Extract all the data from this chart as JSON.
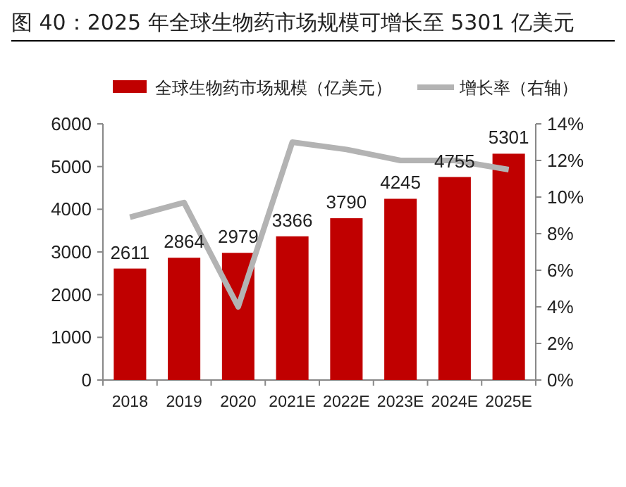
{
  "chart_data": {
    "type": "bar",
    "title": "图 40：2025 年全球生物药市场规模可增长至 5301 亿美元",
    "categories": [
      "2018",
      "2019",
      "2020",
      "2021E",
      "2022E",
      "2023E",
      "2024E",
      "2025E"
    ],
    "series": [
      {
        "name": "全球生物药市场规模（亿美元）",
        "color": "#c00000",
        "values": [
          2611,
          2864,
          2979,
          3366,
          3790,
          4245,
          4755,
          5301
        ],
        "value_labels": [
          "2611",
          "2864",
          "2979",
          "3366",
          "3790",
          "4245",
          "4755",
          "5301"
        ]
      },
      {
        "type": "line",
        "name": "增长率（右轴）",
        "color": "#b3b3b3",
        "axis": "y2",
        "values": [
          8.9,
          9.7,
          4.0,
          13.0,
          12.6,
          12.0,
          12.0,
          11.5
        ]
      }
    ],
    "ylim": [
      0,
      6000
    ],
    "yticks": [
      0,
      1000,
      2000,
      3000,
      4000,
      5000,
      6000
    ],
    "y2lim": [
      0,
      14
    ],
    "y2ticks": [
      {
        "value": 0,
        "label": "0%"
      },
      {
        "value": 2,
        "label": "2%"
      },
      {
        "value": 4,
        "label": "4%"
      },
      {
        "value": 6,
        "label": "6%"
      },
      {
        "value": 8,
        "label": "8%"
      },
      {
        "value": 10,
        "label": "10%"
      },
      {
        "value": 12,
        "label": "12%"
      },
      {
        "value": 14,
        "label": "14%"
      }
    ],
    "legend": "top"
  }
}
